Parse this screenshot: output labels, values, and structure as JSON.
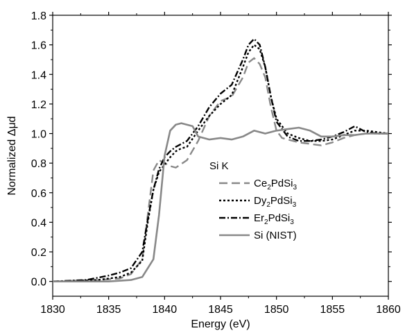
{
  "chart_data": {
    "type": "line",
    "xlabel": "Energy (eV)",
    "ylabel": "Normalized Δμd",
    "xlim": [
      1830,
      1860
    ],
    "ylim": [
      -0.1,
      1.8
    ],
    "xticks": [
      1830,
      1835,
      1840,
      1845,
      1850,
      1855,
      1860
    ],
    "yticks": [
      0.0,
      0.2,
      0.4,
      0.6,
      0.8,
      1.0,
      1.2,
      1.4,
      1.6,
      1.8
    ],
    "xtick_labels": [
      "1830",
      "1835",
      "1840",
      "1845",
      "1850",
      "1855",
      "1860"
    ],
    "ytick_labels": [
      "0.0",
      "0.2",
      "0.4",
      "0.6",
      "0.8",
      "1.0",
      "1.2",
      "1.4",
      "1.6",
      "1.8"
    ],
    "grid": false,
    "legend": {
      "placement": "center-right",
      "title": "Si K",
      "entries": [
        {
          "formula": [
            "Ce",
            "2",
            "PdSi",
            "3"
          ]
        },
        {
          "formula": [
            "Dy",
            "2",
            "PdSi",
            "3"
          ]
        },
        {
          "formula": [
            "Er",
            "2",
            "PdSi",
            "3"
          ]
        },
        {
          "formula": [
            "Si (NIST)"
          ]
        }
      ]
    },
    "series": [
      {
        "name": "Ce2PdSi3",
        "color": "#888888",
        "dash": "dashed-long",
        "x": [
          1830,
          1834,
          1836,
          1837,
          1838,
          1838.5,
          1839,
          1839.5,
          1840,
          1840.5,
          1841,
          1842,
          1843,
          1844,
          1845,
          1846,
          1847,
          1847.5,
          1848,
          1848.5,
          1849,
          1849.5,
          1850,
          1850.5,
          1851,
          1852,
          1853,
          1854,
          1855,
          1856,
          1857,
          1858,
          1859,
          1860
        ],
        "y": [
          0.0,
          0.01,
          0.02,
          0.05,
          0.15,
          0.45,
          0.75,
          0.82,
          0.8,
          0.78,
          0.77,
          0.82,
          0.95,
          1.12,
          1.22,
          1.25,
          1.38,
          1.48,
          1.51,
          1.47,
          1.38,
          1.18,
          1.02,
          0.97,
          0.96,
          0.94,
          0.93,
          0.92,
          0.94,
          0.97,
          0.99,
          1.0,
          1.0,
          1.0
        ]
      },
      {
        "name": "Dy2PdSi3",
        "color": "#000000",
        "dash": "dotted",
        "x": [
          1830,
          1834,
          1836,
          1837,
          1838,
          1838.5,
          1839,
          1839.5,
          1840,
          1840.5,
          1841,
          1841.5,
          1842,
          1843,
          1844,
          1845,
          1846,
          1847,
          1847.5,
          1848,
          1848.5,
          1849,
          1849.5,
          1850,
          1851,
          1852,
          1853,
          1854,
          1855,
          1856,
          1857,
          1858,
          1859,
          1860
        ],
        "y": [
          0.0,
          0.01,
          0.03,
          0.06,
          0.14,
          0.4,
          0.62,
          0.74,
          0.79,
          0.84,
          0.88,
          0.9,
          0.91,
          1.02,
          1.12,
          1.2,
          1.26,
          1.45,
          1.55,
          1.6,
          1.57,
          1.45,
          1.25,
          1.1,
          1.0,
          0.97,
          0.95,
          0.95,
          0.96,
          0.99,
          1.02,
          1.02,
          1.01,
          1.0
        ]
      },
      {
        "name": "Er2PdSi3",
        "color": "#000000",
        "dash": "dash-dot",
        "x": [
          1830,
          1833,
          1835,
          1836,
          1837,
          1838,
          1838.5,
          1839,
          1839.5,
          1840,
          1840.5,
          1841,
          1842,
          1843,
          1844,
          1845,
          1846,
          1847,
          1847.5,
          1848,
          1848.5,
          1849,
          1849.5,
          1850,
          1851,
          1852,
          1853,
          1854,
          1855,
          1856,
          1857,
          1858,
          1859,
          1860
        ],
        "y": [
          0.0,
          0.01,
          0.04,
          0.06,
          0.09,
          0.2,
          0.42,
          0.62,
          0.76,
          0.84,
          0.88,
          0.91,
          0.95,
          1.05,
          1.18,
          1.27,
          1.33,
          1.5,
          1.6,
          1.64,
          1.6,
          1.45,
          1.25,
          1.08,
          0.98,
          0.95,
          0.95,
          0.96,
          0.98,
          1.01,
          1.05,
          1.01,
          1.0,
          1.0
        ]
      },
      {
        "name": "Si (NIST)",
        "color": "#888888",
        "dash": "solid",
        "x": [
          1830,
          1835,
          1837,
          1838,
          1839,
          1839.5,
          1840,
          1840.5,
          1841,
          1841.5,
          1842,
          1842.5,
          1843,
          1844,
          1845,
          1846,
          1847,
          1848,
          1849,
          1850,
          1851,
          1852,
          1853,
          1854,
          1855,
          1856,
          1857,
          1858,
          1859,
          1860
        ],
        "y": [
          0.0,
          0.0,
          0.01,
          0.03,
          0.15,
          0.45,
          0.85,
          1.02,
          1.06,
          1.07,
          1.06,
          1.05,
          0.98,
          0.96,
          0.97,
          0.96,
          0.98,
          1.02,
          1.0,
          1.02,
          1.03,
          1.04,
          1.02,
          0.98,
          0.98,
          0.99,
          0.99,
          1.0,
          1.0,
          1.0
        ]
      }
    ]
  }
}
